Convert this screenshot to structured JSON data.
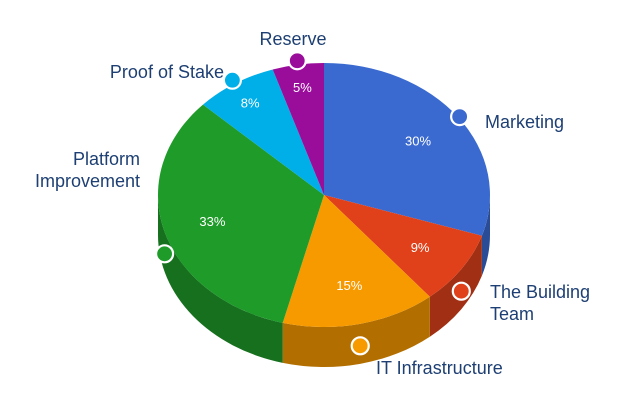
{
  "chart_data": {
    "type": "pie",
    "title": "",
    "slices": [
      {
        "label": "Marketing",
        "value": 30,
        "value_label": "30%",
        "color": "#3a6ad0"
      },
      {
        "label": "The Building Team",
        "value": 9,
        "value_label": "9%",
        "color": "#e0411a"
      },
      {
        "label": "IT Infrastructure",
        "value": 15,
        "value_label": "15%",
        "color": "#f79a00"
      },
      {
        "label": "Platform Improvement",
        "value": 33,
        "value_label": "33%",
        "color": "#1f9b2a"
      },
      {
        "label": "Proof of Stake",
        "value": 8,
        "value_label": "8%",
        "color": "#00aee8"
      },
      {
        "label": "Reserve",
        "value": 5,
        "value_label": "5%",
        "color": "#9a0c9a"
      }
    ]
  }
}
